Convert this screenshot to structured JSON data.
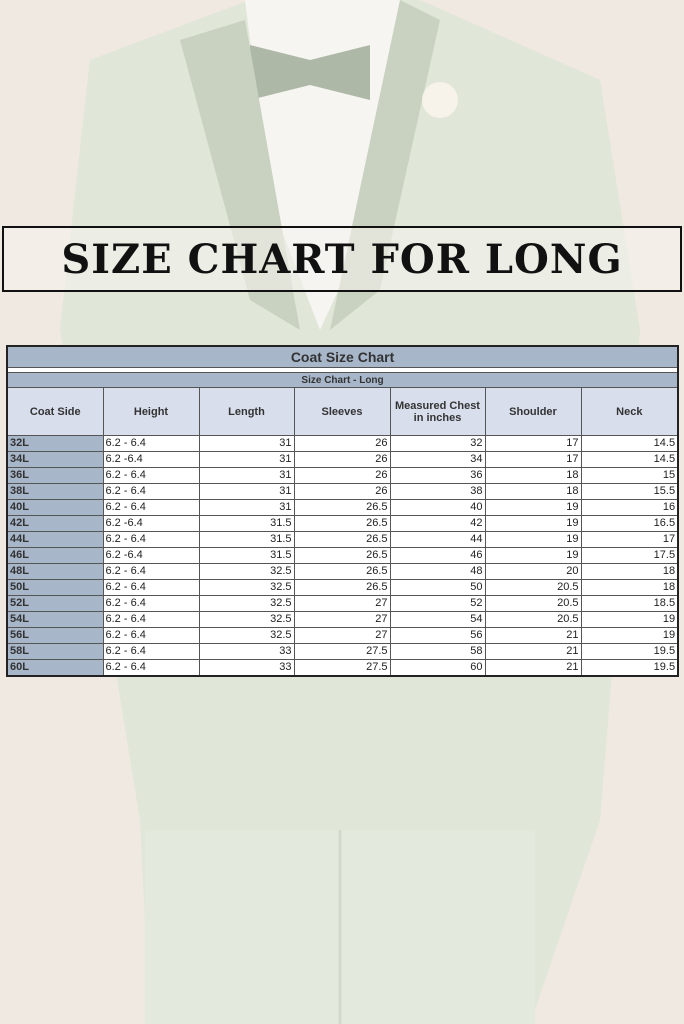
{
  "banner": {
    "title": "SIZE CHART FOR LONG"
  },
  "table": {
    "title": "Coat Size Chart",
    "subtitle": "Size Chart - Long",
    "columns": [
      "Coat Side",
      "Height",
      "Length",
      "Sleeves",
      "Measured Chest in inches",
      "Shoulder",
      "Neck"
    ],
    "rows": [
      [
        "32L",
        "6.2 - 6.4",
        "31",
        "26",
        "32",
        "17",
        "14.5"
      ],
      [
        "34L",
        "6.2 -6.4",
        "31",
        "26",
        "34",
        "17",
        "14.5"
      ],
      [
        "36L",
        "6.2 - 6.4",
        "31",
        "26",
        "36",
        "18",
        "15"
      ],
      [
        "38L",
        "6.2 - 6.4",
        "31",
        "26",
        "38",
        "18",
        "15.5"
      ],
      [
        "40L",
        "6.2 - 6.4",
        "31",
        "26.5",
        "40",
        "19",
        "16"
      ],
      [
        "42L",
        "6.2 -6.4",
        "31.5",
        "26.5",
        "42",
        "19",
        "16.5"
      ],
      [
        "44L",
        "6.2 - 6.4",
        "31.5",
        "26.5",
        "44",
        "19",
        "17"
      ],
      [
        "46L",
        "6.2 -6.4",
        "31.5",
        "26.5",
        "46",
        "19",
        "17.5"
      ],
      [
        "48L",
        "6.2 - 6.4",
        "32.5",
        "26.5",
        "48",
        "20",
        "18"
      ],
      [
        "50L",
        "6.2 - 6.4",
        "32.5",
        "26.5",
        "50",
        "20.5",
        "18"
      ],
      [
        "52L",
        "6.2 - 6.4",
        "32.5",
        "27",
        "52",
        "20.5",
        "18.5"
      ],
      [
        "54L",
        "6.2 - 6.4",
        "32.5",
        "27",
        "54",
        "20.5",
        "19"
      ],
      [
        "56L",
        "6.2 - 6.4",
        "32.5",
        "27",
        "56",
        "21",
        "19"
      ],
      [
        "58L",
        "6.2 - 6.4",
        "33",
        "27.5",
        "58",
        "21",
        "19.5"
      ],
      [
        "60L",
        "6.2 - 6.4",
        "33",
        "27.5",
        "60",
        "21",
        "19.5"
      ]
    ]
  },
  "colors": {
    "header_blue": "#a7b6c9",
    "column_header": "#d8deec",
    "suit": "#dfe6d6"
  }
}
